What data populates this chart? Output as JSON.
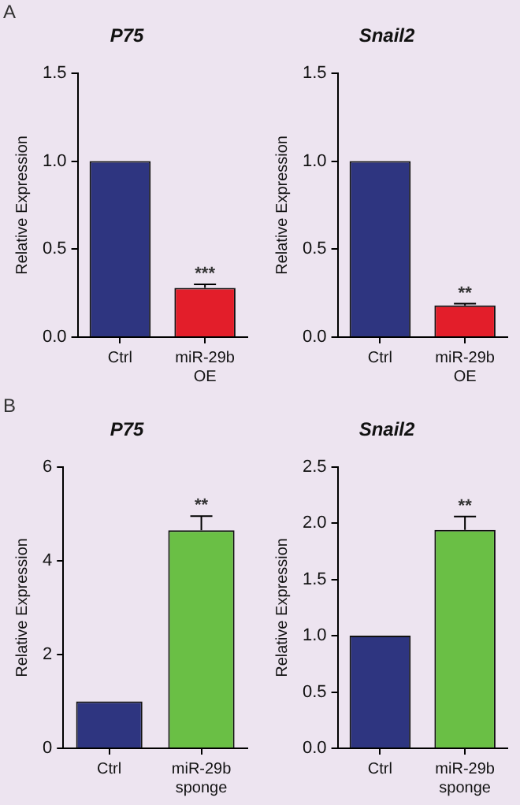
{
  "chart_data": [
    {
      "type": "bar",
      "title": "P75",
      "ylabel": "Relative Expression",
      "categories": [
        "Ctrl",
        "miR-29b OE"
      ],
      "values": [
        1.0,
        0.28
      ],
      "colors": [
        "#2e3580",
        "#e31e2a"
      ],
      "errors": [
        null,
        [
          0.28,
          0.3
        ]
      ],
      "ylim": [
        0,
        1.5
      ],
      "yticks": [
        {
          "value": 0,
          "label": "0.0"
        },
        {
          "value": 0.5,
          "label": "0.5"
        },
        {
          "value": 1,
          "label": "1.0"
        },
        {
          "value": 1.5,
          "label": "1.5"
        }
      ],
      "annotations": [
        "A",
        {
          "text": "***",
          "x": "miR-29b OE",
          "y": 0.3
        }
      ]
    },
    {
      "type": "bar",
      "title": "Snail2",
      "ylabel": "Relative Expression",
      "categories": [
        "Ctrl",
        "miR-29b OE"
      ],
      "values": [
        1.0,
        0.18
      ],
      "colors": [
        "#2e3580",
        "#e31e2a"
      ],
      "errors": [
        null,
        [
          0.18,
          0.19
        ]
      ],
      "ylim": [
        0,
        1.5
      ],
      "yticks": [
        {
          "value": 0,
          "label": "0.0"
        },
        {
          "value": 0.5,
          "label": "0.5"
        },
        {
          "value": 1,
          "label": "1.0"
        },
        {
          "value": 1.5,
          "label": "1.5"
        }
      ],
      "annotations": [
        {
          "text": "**",
          "x": "miR-29b OE",
          "y": 0.19
        }
      ]
    },
    {
      "type": "bar",
      "title": "P75",
      "ylabel": "Relative Expression",
      "categories": [
        "Ctrl",
        "miR-29b sponge"
      ],
      "values": [
        1.0,
        4.65
      ],
      "colors": [
        "#2e3580",
        "#6abf45"
      ],
      "errors": [
        null,
        [
          4.65,
          4.95
        ]
      ],
      "ylim": [
        0,
        6
      ],
      "yticks": [
        0,
        2,
        4,
        6
      ],
      "annotations": [
        "B",
        {
          "text": "**",
          "x": "miR-29b sponge",
          "y": 4.95
        }
      ]
    },
    {
      "type": "bar",
      "title": "Snail2",
      "ylabel": "Relative Expression",
      "categories": [
        "Ctrl",
        "miR-29b sponge"
      ],
      "values": [
        1.0,
        1.94
      ],
      "colors": [
        "#2e3580",
        "#6abf45"
      ],
      "errors": [
        null,
        [
          1.94,
          2.06
        ]
      ],
      "ylim": [
        0,
        2.5
      ],
      "yticks": [
        {
          "value": 0,
          "label": "0.0"
        },
        {
          "value": 0.5,
          "label": "0.5"
        },
        {
          "value": 1,
          "label": "1.0"
        },
        {
          "value": 1.5,
          "label": "1.5"
        },
        {
          "value": 2,
          "label": "2.0"
        },
        {
          "value": 2.5,
          "label": "2.5"
        }
      ],
      "annotations": [
        {
          "text": "**",
          "x": "miR-29b sponge",
          "y": 2.06
        }
      ]
    }
  ]
}
